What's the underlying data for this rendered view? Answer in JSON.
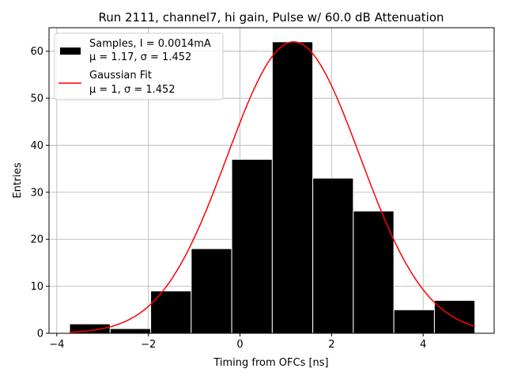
{
  "chart_data": {
    "type": "bar",
    "title": "Run 2111, channel7, hi gain, Pulse w/ 60.0 dB Attenuation",
    "xlabel": "Timing from OFCs [ns]",
    "ylabel": "Entries",
    "xlim": [
      -4.17,
      5.55
    ],
    "ylim": [
      0,
      65
    ],
    "xticks": [
      -4,
      -2,
      0,
      2,
      4
    ],
    "yticks": [
      0,
      10,
      20,
      30,
      40,
      50,
      60
    ],
    "xtick_labels": [
      "−4",
      "−2",
      "0",
      "2",
      "4"
    ],
    "ytick_labels": [
      "0",
      "10",
      "20",
      "30",
      "40",
      "50",
      "60"
    ],
    "grid": true,
    "legend_position": "top-left",
    "bin_edges": [
      -3.72,
      -2.835,
      -1.95,
      -1.065,
      -0.18,
      0.705,
      1.59,
      2.475,
      3.36,
      4.245,
      5.13
    ],
    "values": [
      2,
      1,
      9,
      18,
      37,
      62,
      33,
      26,
      5,
      7
    ],
    "bar_color": "#000000",
    "bar_edge_color": "#ffffff",
    "fit": {
      "type": "line",
      "color": "#ff0000",
      "amplitude": 62,
      "center": 1.17,
      "sigma": 1.452
    },
    "legend": [
      {
        "line1": "Samples, I = 0.0014mA",
        "line2": "μ = 1.17, σ = 1.452",
        "color": "#000000",
        "kind": "patch"
      },
      {
        "line1": "Gaussian Fit",
        "line2": "μ = 1, σ = 1.452",
        "color": "#ff0000",
        "kind": "line"
      }
    ]
  }
}
